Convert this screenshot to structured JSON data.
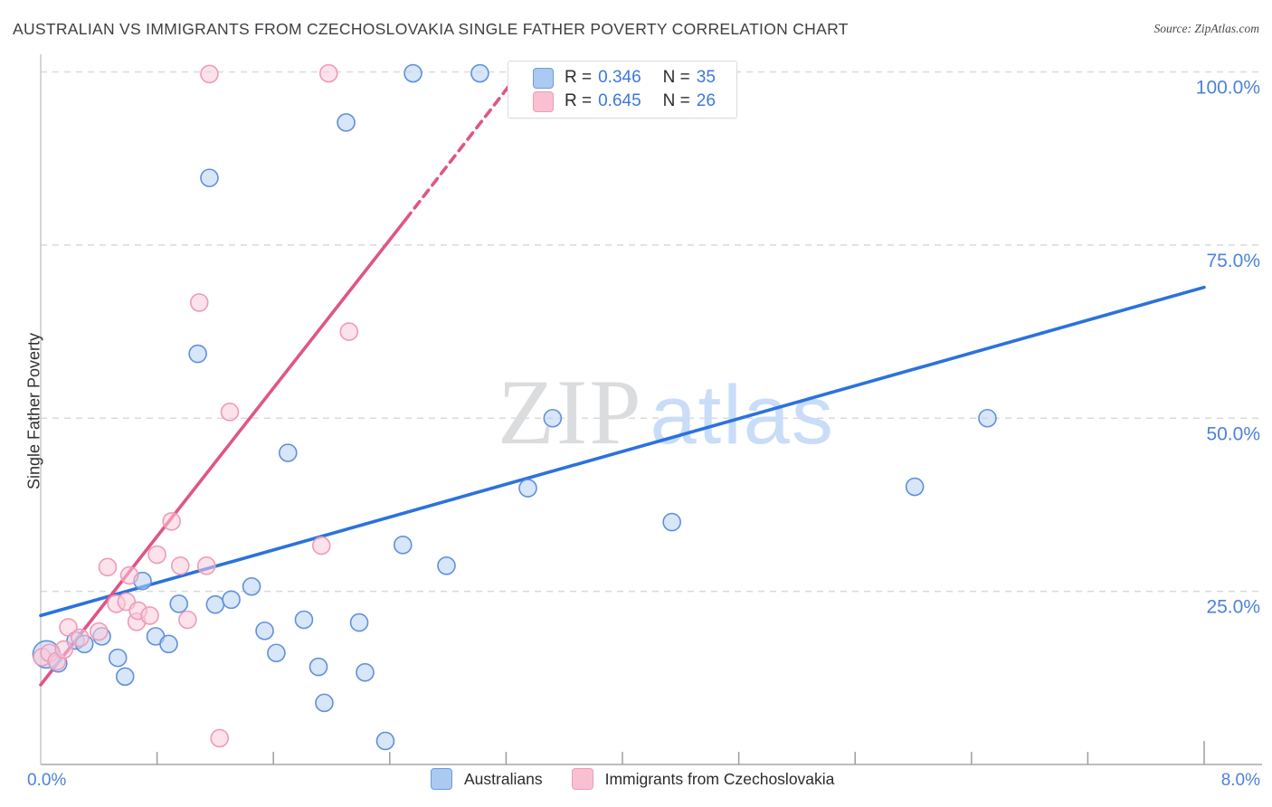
{
  "header": {
    "title": "AUSTRALIAN VS IMMIGRANTS FROM CZECHOSLOVAKIA SINGLE FATHER POVERTY CORRELATION CHART",
    "source": "Source: ZipAtlas.com"
  },
  "y_axis": {
    "title": "Single Father Poverty",
    "tick_labels": [
      "100.0%",
      "75.0%",
      "50.0%",
      "25.0%"
    ],
    "tick_values": [
      100,
      75,
      50,
      25
    ]
  },
  "x_axis": {
    "min_label": "0.0%",
    "max_label": "8.0%",
    "min": 0,
    "max": 8,
    "minor_tick_step": 0.8
  },
  "legend_box": {
    "rows": [
      {
        "series": "Australians",
        "r_label": "R =",
        "r": "0.346",
        "n_label": "N =",
        "n": "35"
      },
      {
        "series": "Immigrants from Czechoslovakia",
        "r_label": "R =",
        "r": "0.645",
        "n_label": "N =",
        "n": "26"
      }
    ]
  },
  "bottom_legend": {
    "items": [
      {
        "label": "Australians"
      },
      {
        "label": "Immigrants from Czechoslovakia"
      }
    ]
  },
  "watermark": {
    "part1": "ZIP",
    "part2": "atlas"
  },
  "colors": {
    "blue_point_stroke": "#6090da",
    "blue_point_fill": "#b8d2f4",
    "pink_point_stroke": "#ef9ab8",
    "pink_point_fill": "#f9cadb",
    "blue_trend": "#2b72dd",
    "pink_trend": "#e05586",
    "gridline": "#dadada",
    "axis_line": "#bdbdbd",
    "tick": "#9e9e9e",
    "axis_label_blue": "#4d82d8",
    "watermark_gray": "#dadcde",
    "watermark_blue": "#c9dcf8"
  },
  "chart_data": {
    "type": "scatter",
    "title": "Australian vs Immigrants from Czechoslovakia Single Father Poverty",
    "xlabel": "",
    "ylabel": "Single Father Poverty",
    "xlim": [
      0,
      8
    ],
    "ylim": [
      0,
      102.5
    ],
    "grid": "horizontal-dashed",
    "legend_position": "bottom-center",
    "series": [
      {
        "name": "Australians",
        "r": 0.346,
        "n": 35,
        "points": [
          [
            0.04,
            15.9,
            15
          ],
          [
            0.12,
            14.6
          ],
          [
            0.24,
            17.9
          ],
          [
            0.3,
            17.4
          ],
          [
            0.42,
            18.5
          ],
          [
            0.53,
            15.4
          ],
          [
            0.58,
            12.7
          ],
          [
            0.7,
            26.5
          ],
          [
            0.79,
            18.5
          ],
          [
            0.88,
            17.4
          ],
          [
            0.95,
            23.2
          ],
          [
            1.08,
            59.3
          ],
          [
            1.16,
            84.7
          ],
          [
            1.2,
            23.1
          ],
          [
            1.31,
            23.8
          ],
          [
            1.45,
            25.7
          ],
          [
            1.54,
            19.3
          ],
          [
            1.62,
            16.1
          ],
          [
            1.7,
            45.0
          ],
          [
            1.81,
            20.9
          ],
          [
            1.91,
            14.1
          ],
          [
            1.95,
            8.9
          ],
          [
            2.1,
            92.7
          ],
          [
            2.19,
            20.5
          ],
          [
            2.23,
            13.3
          ],
          [
            2.37,
            3.4
          ],
          [
            2.49,
            31.7
          ],
          [
            2.56,
            99.8
          ],
          [
            2.79,
            28.7
          ],
          [
            3.02,
            99.8
          ],
          [
            3.35,
            39.9
          ],
          [
            3.52,
            50.0
          ],
          [
            4.34,
            35.0
          ],
          [
            6.01,
            40.1
          ],
          [
            6.51,
            50.0
          ]
        ]
      },
      {
        "name": "Immigrants from Czechoslovakia",
        "r": 0.645,
        "n": 26,
        "points": [
          [
            0.01,
            15.5
          ],
          [
            0.06,
            16.1
          ],
          [
            0.11,
            14.9
          ],
          [
            0.16,
            16.6
          ],
          [
            0.19,
            19.8
          ],
          [
            0.27,
            18.3
          ],
          [
            0.4,
            19.2
          ],
          [
            0.46,
            28.5
          ],
          [
            0.52,
            23.2
          ],
          [
            0.59,
            23.5
          ],
          [
            0.61,
            27.3
          ],
          [
            0.66,
            20.6
          ],
          [
            0.67,
            22.2
          ],
          [
            0.75,
            21.5
          ],
          [
            0.8,
            30.3
          ],
          [
            0.9,
            35.1
          ],
          [
            0.96,
            28.7
          ],
          [
            1.01,
            20.9
          ],
          [
            1.09,
            66.7
          ],
          [
            1.14,
            28.7
          ],
          [
            1.16,
            99.7
          ],
          [
            1.23,
            3.8
          ],
          [
            1.3,
            50.9
          ],
          [
            1.93,
            31.6
          ],
          [
            1.98,
            99.8
          ],
          [
            2.12,
            62.5
          ]
        ]
      }
    ],
    "trend_lines": [
      {
        "series": "Australians",
        "style": "solid",
        "x1": 0,
        "y1": 21.5,
        "x2": 8.0,
        "y2": 68.9
      },
      {
        "series": "Immigrants from Czechoslovakia",
        "style": "solid",
        "x1": 0,
        "y1": 11.5,
        "x2": 2.51,
        "y2": 78.7
      },
      {
        "series": "Immigrants from Czechoslovakia",
        "style": "dashed",
        "x1": 2.51,
        "y1": 78.7,
        "x2": 3.28,
        "y2": 99.6
      }
    ]
  }
}
